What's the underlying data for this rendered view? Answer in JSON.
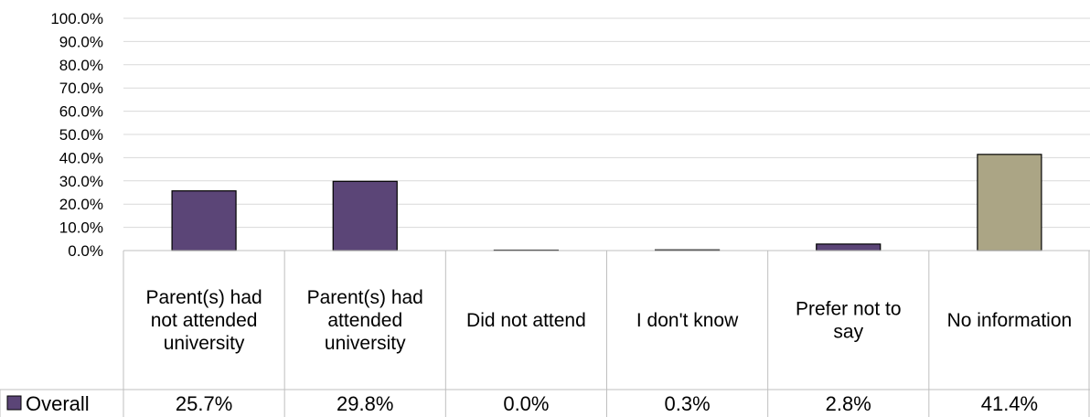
{
  "chart_data": {
    "type": "bar",
    "categories": [
      "Parent(s) had not attended university",
      "Parent(s) had attended university",
      "Did not attend",
      "I don't know",
      "Prefer not to say",
      "No information"
    ],
    "series": [
      {
        "name": "Overall",
        "values": [
          25.7,
          29.8,
          0.0,
          0.3,
          2.8,
          41.4
        ],
        "value_labels": [
          "25.7%",
          "29.8%",
          "0.0%",
          "0.3%",
          "2.8%",
          "41.4%"
        ],
        "bar_colors": [
          "#5b4577",
          "#5b4577",
          "#5b4577",
          "#5b4577",
          "#5b4577",
          "#aba585"
        ]
      }
    ],
    "ylim": [
      0,
      100
    ],
    "yticks": [
      "0.0%",
      "10.0%",
      "20.0%",
      "30.0%",
      "40.0%",
      "50.0%",
      "60.0%",
      "70.0%",
      "80.0%",
      "90.0%",
      "100.0%"
    ],
    "grid": true,
    "legend": "data-table",
    "series_color": "#5b4577",
    "highlight_color": "#aba585"
  }
}
